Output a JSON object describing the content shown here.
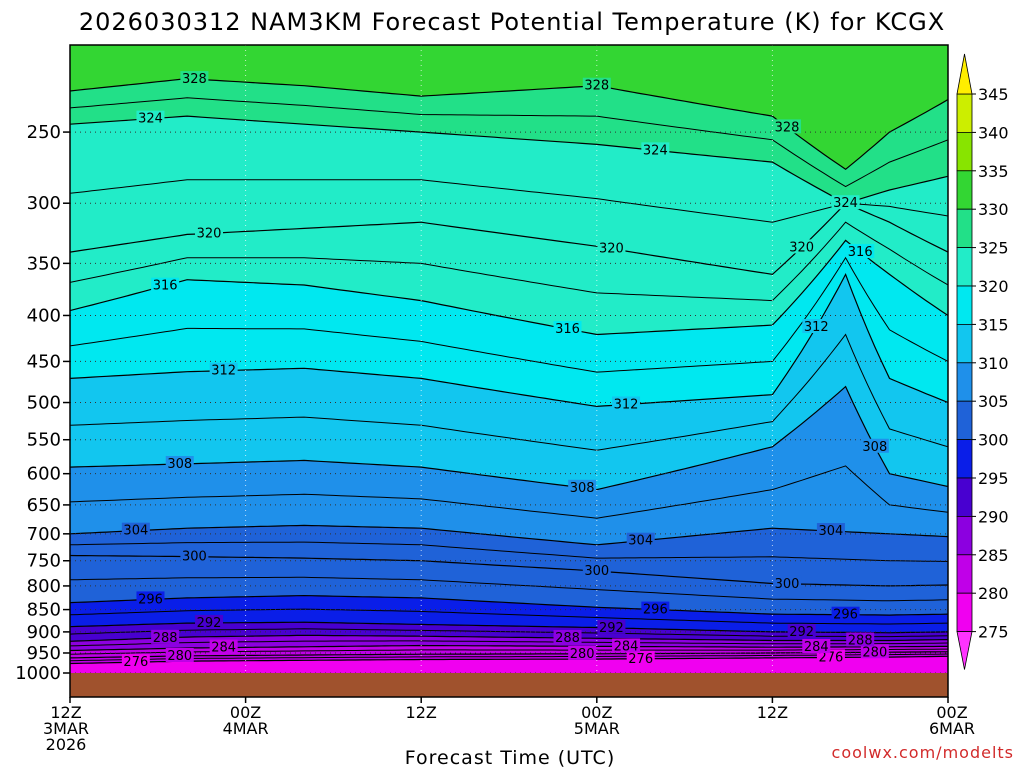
{
  "title": "2026030312 NAM3KM Forecast Potential Temperature (K) for KCGX",
  "credit": "coolwx.com/modelts",
  "chart_data": {
    "type": "contour-timeseries",
    "title": "2026030312 NAM3KM Forecast Potential Temperature (K) for KCGX",
    "xlabel": "Forecast Time (UTC)",
    "ylabel": "",
    "x_range_hours": [
      0,
      60
    ],
    "x_ticks": [
      {
        "hour": 0,
        "label": "12Z",
        "sub1": "3MAR",
        "sub2": "2026"
      },
      {
        "hour": 12,
        "label": "00Z",
        "sub1": "4MAR",
        "sub2": ""
      },
      {
        "hour": 24,
        "label": "12Z",
        "sub1": "",
        "sub2": ""
      },
      {
        "hour": 36,
        "label": "00Z",
        "sub1": "5MAR",
        "sub2": ""
      },
      {
        "hour": 48,
        "label": "12Z",
        "sub1": "",
        "sub2": ""
      },
      {
        "hour": 60,
        "label": "00Z",
        "sub1": "6MAR",
        "sub2": ""
      }
    ],
    "y_axis": "pressure (log)",
    "y_range": [
      1000,
      200
    ],
    "y_ticks": [
      "250",
      "300",
      "350",
      "400",
      "450",
      "500",
      "550",
      "600",
      "650",
      "700",
      "750",
      "800",
      "850",
      "900",
      "950",
      "1000"
    ],
    "colorbar": {
      "levels": [
        "345",
        "340",
        "335",
        "330",
        "325",
        "320",
        "315",
        "310",
        "305",
        "300",
        "295",
        "290",
        "285",
        "280",
        "275"
      ],
      "colors": [
        "#ffee00",
        "#ccee00",
        "#88e400",
        "#33d633",
        "#22e088",
        "#22ecc8",
        "#00e8f0",
        "#12c6ef",
        "#1f90ea",
        "#1f62d8",
        "#0a1ee8",
        "#4800d0",
        "#8c00e0",
        "#c000e8",
        "#f000f0"
      ]
    },
    "contour_lines": [
      {
        "value": 276,
        "label": "276",
        "points": [
          [
            0,
            976
          ],
          [
            8,
            970
          ],
          [
            16,
            968
          ],
          [
            24,
            966
          ],
          [
            36,
            965
          ],
          [
            48,
            962
          ],
          [
            56,
            960
          ],
          [
            60,
            958
          ]
        ]
      },
      {
        "value": 280,
        "label": "280",
        "points": [
          [
            0,
            962
          ],
          [
            8,
            957
          ],
          [
            16,
            955
          ],
          [
            24,
            953
          ],
          [
            36,
            952
          ],
          [
            48,
            950
          ],
          [
            56,
            948
          ],
          [
            60,
            947
          ]
        ]
      },
      {
        "value": 284,
        "label": "284",
        "points": [
          [
            0,
            944
          ],
          [
            8,
            938
          ],
          [
            16,
            935
          ],
          [
            24,
            932
          ],
          [
            36,
            934
          ],
          [
            48,
            936
          ],
          [
            56,
            935
          ],
          [
            60,
            934
          ]
        ]
      },
      {
        "value": 288,
        "label": "288",
        "points": [
          [
            0,
            922
          ],
          [
            8,
            912
          ],
          [
            16,
            908
          ],
          [
            24,
            910
          ],
          [
            36,
            915
          ],
          [
            48,
            920
          ],
          [
            56,
            920
          ],
          [
            60,
            918
          ]
        ]
      },
      {
        "value": 292,
        "label": "292",
        "points": [
          [
            0,
            888
          ],
          [
            8,
            880
          ],
          [
            16,
            878
          ],
          [
            24,
            883
          ],
          [
            36,
            890
          ],
          [
            48,
            900
          ],
          [
            56,
            902
          ],
          [
            60,
            900
          ]
        ]
      },
      {
        "value": 296,
        "label": "296",
        "points": [
          [
            0,
            835
          ],
          [
            8,
            825
          ],
          [
            16,
            820
          ],
          [
            24,
            825
          ],
          [
            36,
            845
          ],
          [
            48,
            860
          ],
          [
            56,
            862
          ],
          [
            60,
            860
          ]
        ]
      },
      {
        "value": 300,
        "label": "300",
        "points": [
          [
            0,
            740
          ],
          [
            8,
            742
          ],
          [
            16,
            745
          ],
          [
            24,
            750
          ],
          [
            36,
            770
          ],
          [
            48,
            795
          ],
          [
            56,
            800
          ],
          [
            60,
            798
          ]
        ]
      },
      {
        "value": 304,
        "label": "304",
        "points": [
          [
            0,
            700
          ],
          [
            8,
            690
          ],
          [
            16,
            685
          ],
          [
            24,
            690
          ],
          [
            36,
            720
          ],
          [
            48,
            690
          ],
          [
            56,
            700
          ],
          [
            60,
            705
          ]
        ]
      },
      {
        "value": 308,
        "label": "308",
        "points": [
          [
            0,
            590
          ],
          [
            8,
            585
          ],
          [
            16,
            580
          ],
          [
            24,
            590
          ],
          [
            36,
            625
          ],
          [
            48,
            560
          ],
          [
            53,
            480
          ],
          [
            56,
            600
          ],
          [
            60,
            620
          ]
        ]
      },
      {
        "value": 312,
        "label": "312",
        "points": [
          [
            0,
            470
          ],
          [
            8,
            462
          ],
          [
            16,
            458
          ],
          [
            24,
            470
          ],
          [
            36,
            505
          ],
          [
            48,
            490
          ],
          [
            53,
            360
          ],
          [
            56,
            470
          ],
          [
            60,
            500
          ]
        ]
      },
      {
        "value": 316,
        "label": "316",
        "points": [
          [
            0,
            395
          ],
          [
            8,
            365
          ],
          [
            16,
            370
          ],
          [
            24,
            385
          ],
          [
            36,
            420
          ],
          [
            48,
            410
          ],
          [
            53,
            330
          ],
          [
            56,
            360
          ],
          [
            60,
            400
          ]
        ]
      },
      {
        "value": 320,
        "label": "320",
        "points": [
          [
            0,
            340
          ],
          [
            8,
            325
          ],
          [
            16,
            320
          ],
          [
            24,
            315
          ],
          [
            36,
            335
          ],
          [
            48,
            360
          ],
          [
            53,
            300
          ],
          [
            56,
            315
          ],
          [
            60,
            340
          ]
        ]
      },
      {
        "value": 324,
        "label": "324",
        "points": [
          [
            0,
            245
          ],
          [
            8,
            240
          ],
          [
            16,
            245
          ],
          [
            24,
            250
          ],
          [
            36,
            258
          ],
          [
            48,
            270
          ],
          [
            53,
            300
          ],
          [
            56,
            290
          ],
          [
            60,
            280
          ]
        ]
      },
      {
        "value": 328,
        "label": "328",
        "points": [
          [
            0,
            225
          ],
          [
            8,
            218
          ],
          [
            16,
            222
          ],
          [
            24,
            228
          ],
          [
            36,
            222
          ],
          [
            48,
            240
          ],
          [
            53,
            275
          ],
          [
            56,
            250
          ],
          [
            60,
            230
          ]
        ]
      }
    ]
  }
}
